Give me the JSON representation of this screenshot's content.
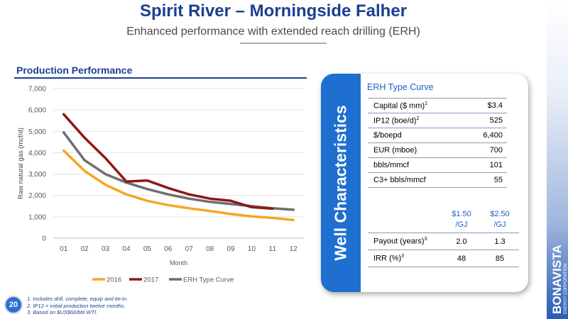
{
  "header": {
    "title": "Spirit River – Morningside Falher",
    "subtitle": "Enhanced performance with extended reach drilling (ERH)"
  },
  "section_label": "Production Performance",
  "colors": {
    "2016": "#f5a623",
    "2017": "#8b1a1a",
    "erh": "#6e6e6e",
    "accent": "#1c3f8f",
    "panel_blue": "#1e6fd0"
  },
  "chart_data": {
    "type": "line",
    "ylabel": "Raw natural gas (mcf/d)",
    "xlabel": "Month",
    "categories": [
      "01",
      "02",
      "03",
      "04",
      "05",
      "06",
      "07",
      "08",
      "09",
      "10",
      "11",
      "12"
    ],
    "ylim": [
      0,
      7000
    ],
    "yticks": [
      0,
      1000,
      2000,
      3000,
      4000,
      5000,
      6000,
      7000
    ],
    "ytick_labels": [
      "0",
      "1,000",
      "2,000",
      "3,000",
      "4,000",
      "5,000",
      "6,000",
      "7,000"
    ],
    "grid": true,
    "legend_position": "bottom",
    "series": [
      {
        "name": "2016",
        "values": [
          4100,
          3150,
          2500,
          2050,
          1750,
          1550,
          1400,
          1270,
          1130,
          1020,
          950,
          850
        ]
      },
      {
        "name": "2017",
        "values": [
          5800,
          4700,
          3750,
          2650,
          2700,
          2350,
          2050,
          1850,
          1750,
          1450,
          1380,
          null
        ]
      },
      {
        "name": "ERH Type Curve",
        "values": [
          4950,
          3650,
          3000,
          2600,
          2300,
          2050,
          1850,
          1700,
          1600,
          1500,
          1400,
          1330
        ]
      }
    ]
  },
  "panel": {
    "vertical_title": "Well Characteristics",
    "heading": "ERH Type Curve",
    "rows": [
      {
        "label": "Capital ($ mm)",
        "sup": "1",
        "value": "$3.4"
      },
      {
        "label": "IP12 (boe/d)",
        "sup": "2",
        "value": "525"
      },
      {
        "label": "$/boepd",
        "sup": "",
        "value": "6,400"
      },
      {
        "label": "EUR (mboe)",
        "sup": "",
        "value": "700"
      },
      {
        "label": "bbls/mmcf",
        "sup": "",
        "value": "101"
      },
      {
        "label": "C3+ bbls/mmcf",
        "sup": "",
        "value": "55"
      }
    ],
    "price_headers": [
      "$1.50 /GJ",
      "$2.50 /GJ"
    ],
    "price_header_lines": [
      [
        "$1.50",
        "/GJ"
      ],
      [
        "$2.50",
        "/GJ"
      ]
    ],
    "price_rows": [
      {
        "label": "Payout (years)",
        "sup": "3",
        "v1": "2.0",
        "v2": "1.3"
      },
      {
        "label": "IRR (%)",
        "sup": "3",
        "v1": "48",
        "v2": "85"
      }
    ]
  },
  "footer": {
    "page_number": "20",
    "footnotes": [
      "1. Includes drill, complete, equip and tie-in.",
      "2. IP12 = initial production twelve months.",
      "3. Based on $US$60/bbl WTI."
    ]
  },
  "logo": {
    "name": "BONAVISTA",
    "tagline": "ENERGY CORPORATION"
  }
}
